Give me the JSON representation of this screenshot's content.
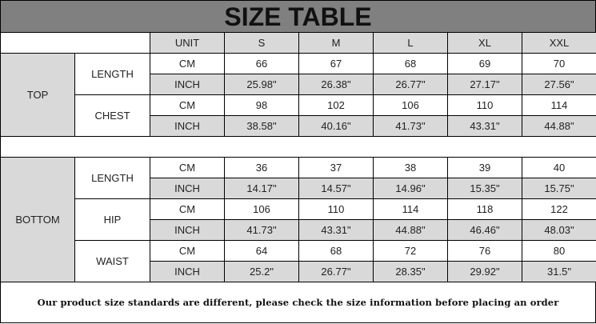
{
  "title": "SIZE TABLE",
  "header": {
    "unit": "UNIT",
    "sizes": [
      "S",
      "M",
      "L",
      "XL",
      "XXL"
    ]
  },
  "sections": [
    {
      "name": "TOP",
      "measures": [
        {
          "name": "LENGTH",
          "rows": [
            {
              "unit": "CM",
              "values": [
                "66",
                "67",
                "68",
                "69",
                "70"
              ]
            },
            {
              "unit": "INCH",
              "values": [
                "25.98\"",
                "26.38\"",
                "26.77\"",
                "27.17\"",
                "27.56\""
              ]
            }
          ]
        },
        {
          "name": "CHEST",
          "rows": [
            {
              "unit": "CM",
              "values": [
                "98",
                "102",
                "106",
                "110",
                "114"
              ]
            },
            {
              "unit": "INCH",
              "values": [
                "38.58\"",
                "40.16\"",
                "41.73\"",
                "43.31\"",
                "44.88\""
              ]
            }
          ]
        }
      ]
    },
    {
      "name": "BOTTOM",
      "measures": [
        {
          "name": "LENGTH",
          "rows": [
            {
              "unit": "CM",
              "values": [
                "36",
                "37",
                "38",
                "39",
                "40"
              ]
            },
            {
              "unit": "INCH",
              "values": [
                "14.17\"",
                "14.57\"",
                "14.96\"",
                "15.35\"",
                "15.75\""
              ]
            }
          ]
        },
        {
          "name": "HIP",
          "rows": [
            {
              "unit": "CM",
              "values": [
                "106",
                "110",
                "114",
                "118",
                "122"
              ]
            },
            {
              "unit": "INCH",
              "values": [
                "41.73\"",
                "43.31\"",
                "44.88\"",
                "46.46\"",
                "48.03\""
              ]
            }
          ]
        },
        {
          "name": "WAIST",
          "rows": [
            {
              "unit": "CM",
              "values": [
                "64",
                "68",
                "72",
                "76",
                "80"
              ]
            },
            {
              "unit": "INCH",
              "values": [
                "25.2\"",
                "26.77\"",
                "28.35\"",
                "29.92\"",
                "31.5\""
              ]
            }
          ]
        }
      ]
    }
  ],
  "note": "Our product size standards are different, please check the size information before placing an order",
  "colors": {
    "title_bg": "#808080",
    "shaded_cell": "#d9d9d9",
    "border": "#000000"
  }
}
